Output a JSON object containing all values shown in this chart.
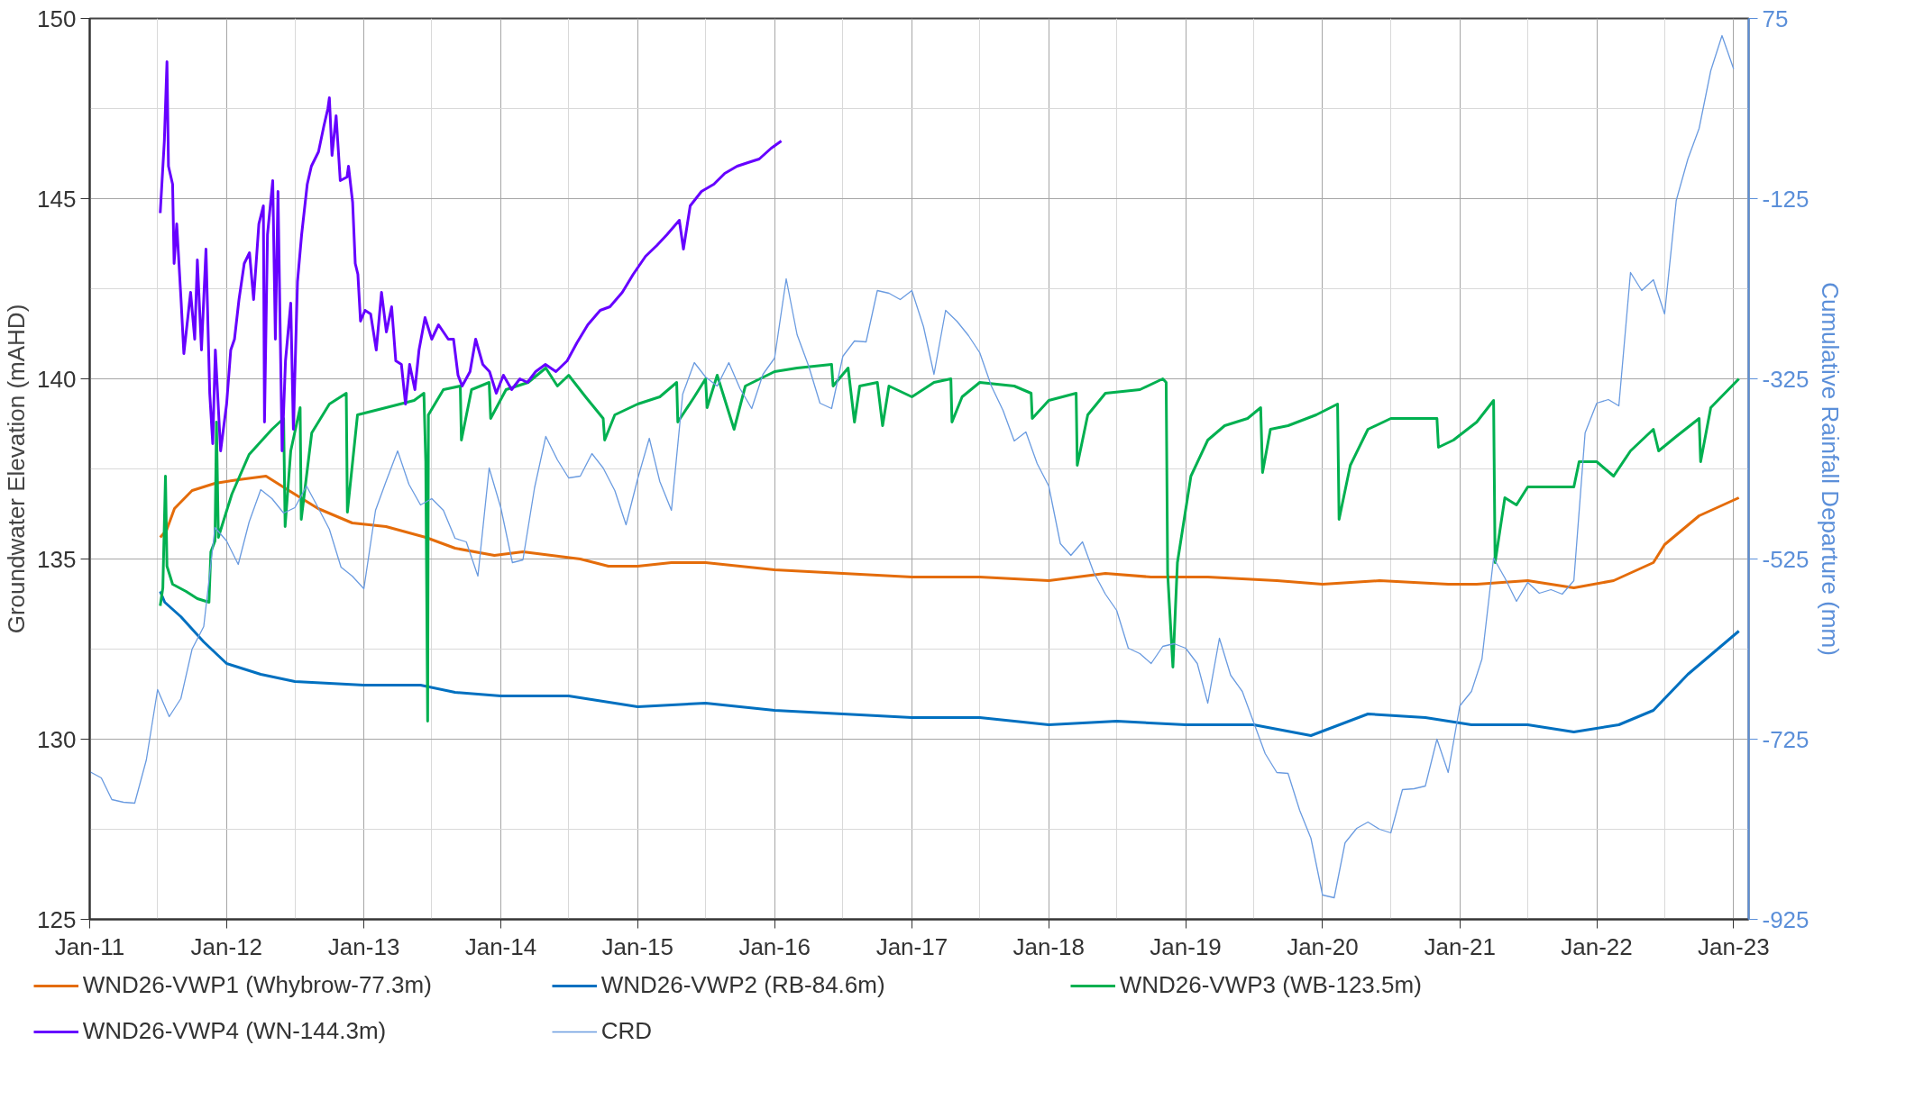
{
  "chart_data": {
    "type": "line",
    "ylabel": "Groundwater Elevation (mAHD)",
    "y2label": "Cumulative Rainfall Departure (mm)",
    "grid": true,
    "legend": "bottom",
    "xlim": [
      "2011-01-01",
      "2023-02-10"
    ],
    "xticks": [
      {
        "value": "2011-01-01",
        "label": "Jan-11"
      },
      {
        "value": "2011-07-01",
        "label": null
      },
      {
        "value": "2012-01-01",
        "label": "Jan-12"
      },
      {
        "value": "2012-07-01",
        "label": null
      },
      {
        "value": "2013-01-01",
        "label": "Jan-13"
      },
      {
        "value": "2013-07-01",
        "label": null
      },
      {
        "value": "2014-01-01",
        "label": "Jan-14"
      },
      {
        "value": "2014-07-01",
        "label": null
      },
      {
        "value": "2015-01-01",
        "label": "Jan-15"
      },
      {
        "value": "2015-07-01",
        "label": null
      },
      {
        "value": "2016-01-01",
        "label": "Jan-16"
      },
      {
        "value": "2016-07-01",
        "label": null
      },
      {
        "value": "2017-01-01",
        "label": "Jan-17"
      },
      {
        "value": "2017-07-01",
        "label": null
      },
      {
        "value": "2018-01-01",
        "label": "Jan-18"
      },
      {
        "value": "2018-07-01",
        "label": null
      },
      {
        "value": "2019-01-01",
        "label": "Jan-19"
      },
      {
        "value": "2019-07-01",
        "label": null
      },
      {
        "value": "2020-01-01",
        "label": "Jan-20"
      },
      {
        "value": "2020-07-01",
        "label": null
      },
      {
        "value": "2021-01-01",
        "label": "Jan-21"
      },
      {
        "value": "2021-07-01",
        "label": null
      },
      {
        "value": "2022-01-01",
        "label": "Jan-22"
      },
      {
        "value": "2022-07-01",
        "label": null
      },
      {
        "value": "2023-01-01",
        "label": "Jan-23"
      }
    ],
    "ylim": [
      125,
      150
    ],
    "yticks": [
      125,
      {
        "value": 127.5,
        "label": null
      },
      130,
      {
        "value": 132.5,
        "label": null
      },
      135,
      {
        "value": 137.5,
        "label": null
      },
      140,
      {
        "value": 142.5,
        "label": null
      },
      145,
      {
        "value": 147.5,
        "label": null
      },
      150
    ],
    "y2lim": [
      -925,
      75
    ],
    "y2ticks": [
      -925,
      -725,
      -525,
      -325,
      -125,
      75
    ],
    "series": [
      {
        "name": "WND26-VWP1 (Whybrow-77.3m)",
        "color": "#e46c0a",
        "x": [
          "2011-07-08",
          "2011-07-25",
          "2011-08-15",
          "2011-10-01",
          "2011-12-01",
          "2012-02-01",
          "2012-04-15",
          "2012-06-15",
          "2012-09-01",
          "2012-12-01",
          "2013-03-01",
          "2013-06-15",
          "2013-09-01",
          "2013-12-15",
          "2014-03-01",
          "2014-08-01",
          "2014-10-15",
          "2015-01-01",
          "2015-04-01",
          "2015-07-01",
          "2015-10-01",
          "2016-01-01",
          "2016-07-01",
          "2017-01-01",
          "2017-07-01",
          "2018-01-01",
          "2018-06-01",
          "2018-10-01",
          "2019-03-01",
          "2019-09-01",
          "2020-01-01",
          "2020-06-01",
          "2020-12-01",
          "2021-02-15",
          "2021-07-01",
          "2021-11-01",
          "2022-02-15",
          "2022-06-01",
          "2022-07-01",
          "2022-10-01",
          "2023-01-15"
        ],
        "values": [
          135.6,
          135.8,
          136.4,
          136.9,
          137.1,
          137.2,
          137.3,
          136.9,
          136.4,
          136.0,
          135.9,
          135.6,
          135.3,
          135.1,
          135.2,
          135.0,
          134.8,
          134.8,
          134.9,
          134.9,
          134.8,
          134.7,
          134.6,
          134.5,
          134.5,
          134.4,
          134.6,
          134.5,
          134.5,
          134.4,
          134.3,
          134.4,
          134.3,
          134.3,
          134.4,
          134.2,
          134.4,
          134.9,
          135.4,
          136.2,
          136.7
        ]
      },
      {
        "name": "WND26-VWP2 (RB-84.6m)",
        "color": "#0070c0",
        "x": [
          "2011-07-08",
          "2011-07-20",
          "2011-09-01",
          "2011-11-01",
          "2012-01-01",
          "2012-04-01",
          "2012-07-01",
          "2013-01-01",
          "2013-06-01",
          "2013-09-01",
          "2014-01-01",
          "2014-07-01",
          "2015-01-01",
          "2015-07-01",
          "2016-01-01",
          "2016-07-01",
          "2017-01-01",
          "2017-07-01",
          "2018-01-01",
          "2018-07-01",
          "2019-01-01",
          "2019-07-01",
          "2019-12-01",
          "2020-05-01",
          "2020-10-01",
          "2021-02-01",
          "2021-07-01",
          "2021-11-01",
          "2022-03-01",
          "2022-06-01",
          "2022-09-01",
          "2023-01-15"
        ],
        "values": [
          134.1,
          133.8,
          133.4,
          132.7,
          132.1,
          131.8,
          131.6,
          131.5,
          131.5,
          131.3,
          131.2,
          131.2,
          130.9,
          131.0,
          130.8,
          130.7,
          130.6,
          130.6,
          130.4,
          130.5,
          130.4,
          130.4,
          130.1,
          130.7,
          130.6,
          130.4,
          130.4,
          130.2,
          130.4,
          130.8,
          131.8,
          133.0
        ]
      },
      {
        "name": "WND26-VWP3 (WB-123.5m)",
        "color": "#00b050",
        "x": [
          "2011-07-08",
          "2011-07-15",
          "2011-07-22",
          "2011-07-26",
          "2011-08-10",
          "2011-09-15",
          "2011-10-15",
          "2011-11-15",
          "2011-11-20",
          "2011-12-01",
          "2011-12-05",
          "2011-12-10",
          "2012-01-15",
          "2012-03-01",
          "2012-05-01",
          "2012-06-01",
          "2012-06-05",
          "2012-06-20",
          "2012-07-15",
          "2012-07-18",
          "2012-08-15",
          "2012-10-01",
          "2012-11-15",
          "2012-11-18",
          "2012-12-15",
          "2013-03-01",
          "2013-05-15",
          "2013-06-10",
          "2013-06-15",
          "2013-06-20",
          "2013-06-22",
          "2013-08-01",
          "2013-09-15",
          "2013-09-18",
          "2013-10-15",
          "2013-12-01",
          "2013-12-05",
          "2014-01-15",
          "2014-03-15",
          "2014-05-01",
          "2014-06-01",
          "2014-07-01",
          "2014-08-15",
          "2014-10-01",
          "2014-10-05",
          "2014-11-01",
          "2015-01-01",
          "2015-03-01",
          "2015-04-15",
          "2015-04-18",
          "2015-06-01",
          "2015-07-01",
          "2015-07-05",
          "2015-08-01",
          "2015-09-15",
          "2015-10-15",
          "2016-01-01",
          "2016-03-01",
          "2016-06-01",
          "2016-06-05",
          "2016-07-15",
          "2016-08-01",
          "2016-08-15",
          "2016-10-01",
          "2016-10-15",
          "2016-11-01",
          "2017-01-01",
          "2017-03-01",
          "2017-04-15",
          "2017-04-18",
          "2017-05-15",
          "2017-07-01",
          "2017-10-01",
          "2017-11-15",
          "2017-11-18",
          "2018-01-01",
          "2018-03-15",
          "2018-03-18",
          "2018-04-15",
          "2018-06-01",
          "2018-09-01",
          "2018-11-01",
          "2018-11-10",
          "2018-11-14",
          "2018-11-28",
          "2018-12-10",
          "2019-01-15",
          "2019-03-01",
          "2019-04-15",
          "2019-06-15",
          "2019-07-20",
          "2019-07-25",
          "2019-08-15",
          "2019-10-01",
          "2019-12-15",
          "2020-02-10",
          "2020-02-14",
          "2020-03-15",
          "2020-05-01",
          "2020-07-01",
          "2020-11-01",
          "2020-11-05",
          "2020-12-15",
          "2021-02-15",
          "2021-04-01",
          "2021-04-05",
          "2021-05-01",
          "2021-06-01",
          "2021-07-01",
          "2021-11-01",
          "2021-11-15",
          "2022-01-01",
          "2022-02-15",
          "2022-04-01",
          "2022-06-01",
          "2022-06-15",
          "2022-08-01",
          "2022-10-01",
          "2022-10-05",
          "2022-11-01",
          "2023-01-15"
        ],
        "values": [
          133.7,
          134.2,
          137.3,
          134.8,
          134.3,
          134.1,
          133.9,
          133.8,
          135.2,
          135.5,
          138.8,
          135.6,
          136.8,
          137.9,
          138.6,
          138.9,
          135.9,
          138.0,
          139.2,
          136.1,
          138.5,
          139.3,
          139.6,
          136.3,
          139.0,
          139.2,
          139.4,
          139.6,
          137.7,
          130.5,
          139.0,
          139.7,
          139.8,
          138.3,
          139.7,
          139.9,
          138.9,
          139.7,
          139.9,
          140.3,
          139.8,
          140.1,
          139.5,
          138.9,
          138.3,
          139.0,
          139.3,
          139.5,
          139.9,
          138.8,
          139.5,
          140.0,
          139.2,
          140.1,
          138.6,
          139.8,
          140.2,
          140.3,
          140.4,
          139.8,
          140.3,
          138.8,
          139.8,
          139.9,
          138.7,
          139.8,
          139.5,
          139.9,
          140.0,
          138.8,
          139.5,
          139.9,
          139.8,
          139.6,
          138.9,
          139.4,
          139.6,
          137.6,
          139.0,
          139.6,
          139.7,
          140.0,
          139.9,
          134.6,
          132.0,
          134.9,
          137.3,
          138.3,
          138.7,
          138.9,
          139.2,
          137.4,
          138.6,
          138.7,
          139.0,
          139.3,
          136.1,
          137.6,
          138.6,
          138.9,
          138.9,
          138.1,
          138.3,
          138.8,
          139.4,
          134.9,
          136.7,
          136.5,
          137.0,
          137.0,
          137.7,
          137.7,
          137.3,
          138.0,
          138.6,
          138.0,
          138.4,
          138.9,
          137.7,
          139.2,
          140.0
        ]
      },
      {
        "name": "WND26-VWP4 (WN-144.3m)",
        "color": "#6600ff",
        "x": [
          "2011-07-08",
          "2011-07-19",
          "2011-07-26",
          "2011-07-30",
          "2011-08-10",
          "2011-08-14",
          "2011-08-21",
          "2011-09-02",
          "2011-09-09",
          "2011-09-27",
          "2011-10-08",
          "2011-10-15",
          "2011-10-26",
          "2011-11-07",
          "2011-11-17",
          "2011-11-25",
          "2011-12-02",
          "2011-12-16",
          "2012-01-01",
          "2012-01-12",
          "2012-01-22",
          "2012-02-03",
          "2012-02-17",
          "2012-03-02",
          "2012-03-13",
          "2012-03-27",
          "2012-04-08",
          "2012-04-11",
          "2012-04-19",
          "2012-05-03",
          "2012-05-10",
          "2012-05-17",
          "2012-05-28",
          "2012-06-06",
          "2012-06-20",
          "2012-06-27",
          "2012-07-08",
          "2012-07-19",
          "2012-08-03",
          "2012-08-14",
          "2012-09-02",
          "2012-09-16",
          "2012-09-27",
          "2012-10-01",
          "2012-10-08",
          "2012-10-19",
          "2012-10-30",
          "2012-11-17",
          "2012-11-21",
          "2012-12-02",
          "2012-12-09",
          "2012-12-16",
          "2012-12-23",
          "2013-01-04",
          "2013-01-19",
          "2013-02-03",
          "2013-02-17",
          "2013-03-02",
          "2013-03-16",
          "2013-03-27",
          "2013-04-11",
          "2013-04-22",
          "2013-05-03",
          "2013-05-17",
          "2013-05-28",
          "2013-06-13",
          "2013-07-01",
          "2013-07-19",
          "2013-08-14",
          "2013-08-28",
          "2013-09-09",
          "2013-09-20",
          "2013-10-11",
          "2013-10-26",
          "2013-11-14",
          "2013-12-02",
          "2013-12-20",
          "2014-01-08",
          "2014-01-30",
          "2014-02-21",
          "2014-03-13",
          "2014-04-04",
          "2014-04-30",
          "2014-05-28",
          "2014-06-27",
          "2014-07-23",
          "2014-08-21",
          "2014-09-23",
          "2014-10-19",
          "2014-11-21",
          "2014-12-20",
          "2015-01-22",
          "2015-02-21",
          "2015-03-20",
          "2015-04-22",
          "2015-05-03",
          "2015-05-21",
          "2015-06-20",
          "2015-07-23",
          "2015-08-21",
          "2015-09-23",
          "2015-10-22",
          "2015-11-21",
          "2015-12-23",
          "2016-01-19"
        ],
        "values": [
          144.6,
          146.6,
          148.8,
          145.9,
          145.4,
          143.2,
          144.3,
          142.1,
          140.7,
          142.4,
          141.1,
          143.3,
          140.8,
          143.6,
          139.6,
          138.2,
          140.8,
          138.0,
          139.3,
          140.8,
          141.1,
          142.2,
          143.2,
          143.5,
          142.2,
          144.3,
          144.8,
          138.8,
          144.0,
          145.5,
          141.1,
          145.2,
          138.0,
          140.5,
          142.1,
          138.6,
          142.7,
          144.0,
          145.4,
          145.9,
          146.3,
          147.0,
          147.5,
          147.8,
          146.2,
          147.3,
          145.5,
          145.6,
          145.9,
          144.9,
          143.2,
          142.9,
          141.6,
          141.9,
          141.8,
          140.8,
          142.4,
          141.3,
          142.0,
          140.5,
          140.4,
          139.3,
          140.4,
          139.7,
          140.8,
          141.7,
          141.1,
          141.5,
          141.1,
          141.1,
          140.1,
          139.8,
          140.2,
          141.1,
          140.4,
          140.2,
          139.6,
          140.1,
          139.7,
          140.0,
          139.9,
          140.2,
          140.4,
          140.2,
          140.5,
          141.0,
          141.5,
          141.9,
          142.0,
          142.4,
          142.9,
          143.4,
          143.7,
          144.0,
          144.4,
          143.6,
          144.8,
          145.2,
          145.4,
          145.7,
          145.9,
          146.0,
          146.1,
          146.4,
          146.6
        ]
      },
      {
        "name": "CRD",
        "color": "#6a9be0",
        "axis": "y2",
        "x": [
          "2011-01",
          "2011-02",
          "2011-03",
          "2011-04",
          "2011-05",
          "2011-06",
          "2011-07",
          "2011-08",
          "2011-09",
          "2011-10",
          "2011-11",
          "2011-12",
          "2012-01",
          "2012-02",
          "2012-03",
          "2012-04",
          "2012-05",
          "2012-06",
          "2012-07",
          "2012-08",
          "2012-09",
          "2012-10",
          "2012-11",
          "2012-12",
          "2013-01",
          "2013-02",
          "2013-03",
          "2013-04",
          "2013-05",
          "2013-06",
          "2013-07",
          "2013-08",
          "2013-09",
          "2013-10",
          "2013-11",
          "2013-12",
          "2014-01",
          "2014-02",
          "2014-03",
          "2014-04",
          "2014-05",
          "2014-06",
          "2014-07",
          "2014-08",
          "2014-09",
          "2014-10",
          "2014-11",
          "2014-12",
          "2015-01",
          "2015-02",
          "2015-03",
          "2015-04",
          "2015-05",
          "2015-06",
          "2015-07",
          "2015-08",
          "2015-09",
          "2015-10",
          "2015-11",
          "2015-12",
          "2016-01",
          "2016-02",
          "2016-03",
          "2016-04",
          "2016-05",
          "2016-06",
          "2016-07",
          "2016-08",
          "2016-09",
          "2016-10",
          "2016-11",
          "2016-12",
          "2017-01",
          "2017-02",
          "2017-03",
          "2017-04",
          "2017-05",
          "2017-06",
          "2017-07",
          "2017-08",
          "2017-09",
          "2017-10",
          "2017-11",
          "2017-12",
          "2018-01",
          "2018-02",
          "2018-03",
          "2018-04",
          "2018-05",
          "2018-06",
          "2018-07",
          "2018-08",
          "2018-09",
          "2018-10",
          "2018-11",
          "2018-12",
          "2019-01",
          "2019-02",
          "2019-03",
          "2019-04",
          "2019-05",
          "2019-06",
          "2019-07",
          "2019-08",
          "2019-09",
          "2019-10",
          "2019-11",
          "2019-12",
          "2020-01",
          "2020-02",
          "2020-03",
          "2020-04",
          "2020-05",
          "2020-06",
          "2020-07",
          "2020-08",
          "2020-09",
          "2020-10",
          "2020-11",
          "2020-12",
          "2021-01",
          "2021-02",
          "2021-03",
          "2021-04",
          "2021-05",
          "2021-06",
          "2021-07",
          "2021-08",
          "2021-09",
          "2021-10",
          "2021-11",
          "2021-12",
          "2022-01",
          "2022-02",
          "2022-03",
          "2022-04",
          "2022-05",
          "2022-06",
          "2022-07",
          "2022-08",
          "2022-09",
          "2022-10",
          "2022-11",
          "2022-12",
          "2023-01"
        ],
        "values": [
          -761,
          -768,
          -792,
          -795,
          -796,
          -748,
          -670,
          -700,
          -680,
          -625,
          -600,
          -490,
          -505,
          -531,
          -484,
          -448,
          -458,
          -474,
          -468,
          -444,
          -468,
          -492,
          -534,
          -544,
          -558,
          -471,
          -439,
          -405,
          -442,
          -465,
          -458,
          -471,
          -502,
          -506,
          -544,
          -424,
          -468,
          -529,
          -526,
          -446,
          -389,
          -415,
          -435,
          -433,
          -408,
          -424,
          -449,
          -487,
          -436,
          -391,
          -439,
          -471,
          -342,
          -307,
          -323,
          -333,
          -307,
          -336,
          -358,
          -320,
          -302,
          -214,
          -276,
          -311,
          -352,
          -358,
          -300,
          -283,
          -284,
          -227,
          -230,
          -237,
          -227,
          -267,
          -320,
          -249,
          -261,
          -277,
          -296,
          -333,
          -360,
          -394,
          -384,
          -419,
          -444,
          -508,
          -521,
          -506,
          -540,
          -564,
          -582,
          -624,
          -630,
          -641,
          -622,
          -619,
          -624,
          -641,
          -685,
          -613,
          -654,
          -672,
          -706,
          -741,
          -762,
          -763,
          -804,
          -835,
          -898,
          -901,
          -840,
          -824,
          -817,
          -825,
          -829,
          -781,
          -780,
          -777,
          -725,
          -762,
          -688,
          -672,
          -636,
          -524,
          -546,
          -572,
          -551,
          -563,
          -559,
          -564,
          -549,
          -385,
          -352,
          -348,
          -355,
          -207,
          -227,
          -215,
          -253,
          -127,
          -81,
          -47,
          17,
          56,
          19
        ]
      }
    ]
  }
}
